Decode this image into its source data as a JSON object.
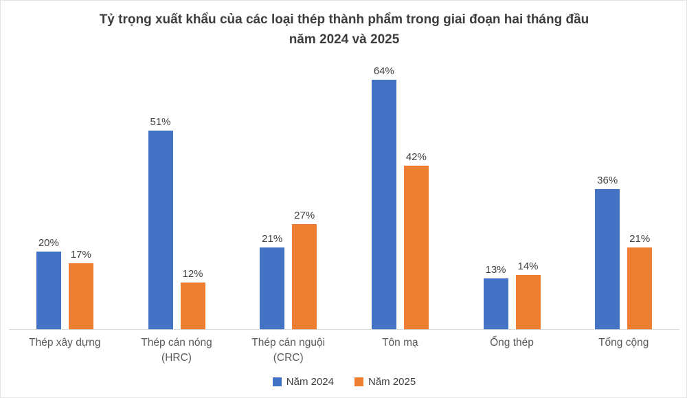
{
  "colors": {
    "series_2024": "#4472C4",
    "series_2025": "#ED7D31",
    "title_text": "#3d3d3d",
    "data_label_text": "#404040",
    "category_label_text": "#595959",
    "axis_line": "#d9d9d9",
    "page_border": "#e3e3e3"
  },
  "chart_data": {
    "type": "bar",
    "title": "Tỷ trọng xuất khẩu của các loại thép thành phẩm trong giai đoạn hai tháng đầu năm 2024 và 2025",
    "title_lines": [
      "Tỷ trọng xuất khẩu của các loại thép thành phẩm trong giai đoạn hai tháng đầu",
      "năm 2024 và 2025"
    ],
    "categories": [
      "Thép xây dựng",
      "Thép cán nóng\n(HRC)",
      "Thép cán nguội\n(CRC)",
      "Tôn mạ",
      "Ống thép",
      "Tổng cộng"
    ],
    "series": [
      {
        "name": "Năm 2024",
        "color": "#4472C4",
        "values": [
          20,
          51,
          21,
          64,
          13,
          36
        ]
      },
      {
        "name": "Năm 2025",
        "color": "#ED7D31",
        "values": [
          17,
          12,
          27,
          42,
          14,
          21
        ]
      }
    ],
    "value_suffix": "%",
    "xlabel": "",
    "ylabel": "",
    "ylim": [
      0,
      70
    ],
    "grid": false,
    "data_labels": true,
    "legend_position": "bottom"
  }
}
